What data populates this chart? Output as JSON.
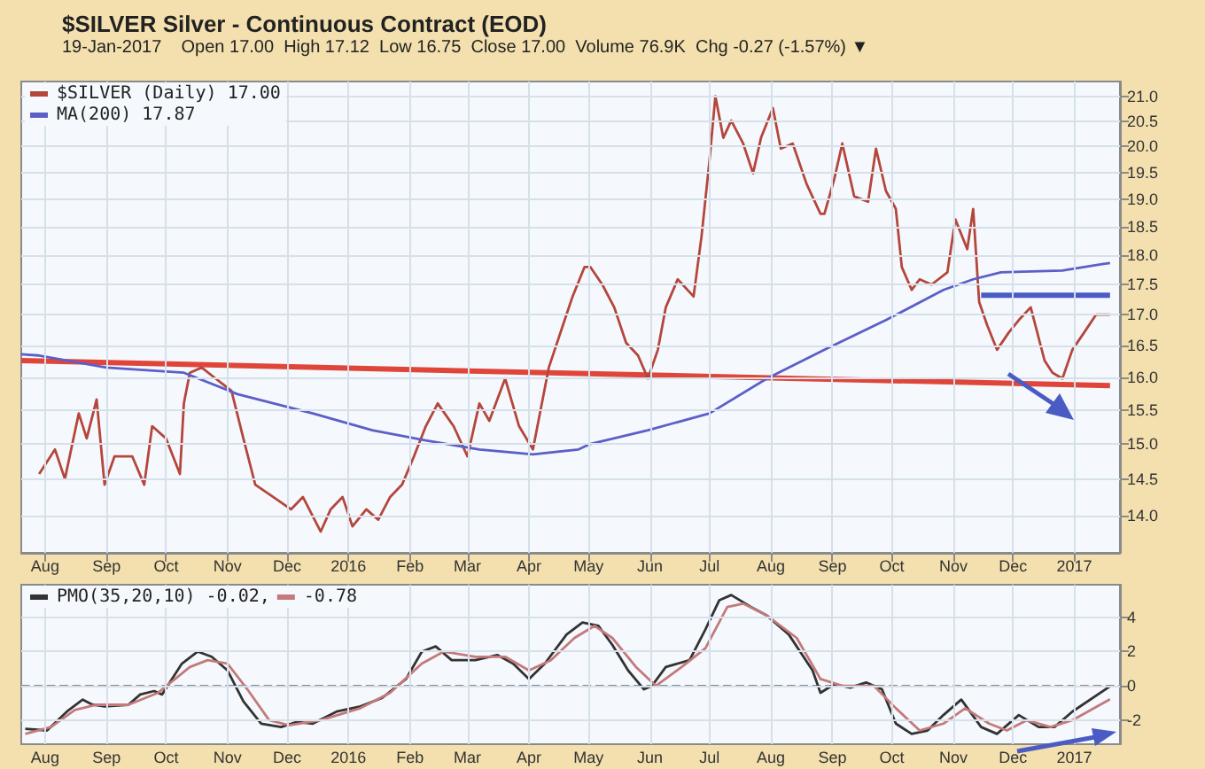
{
  "chart_data": [
    {
      "type": "line",
      "title": "$SILVER Silver - Continuous Contract (EOD)",
      "subtitle": "19-Jan-2017    Open 17.00  High 17.12  Low 16.75  Close 17.00  Volume 76.9K  Chg -0.27 (-1.57%) ▼",
      "xlim": [
        "2015-07-20",
        "2017-01-24"
      ],
      "xticks": [
        {
          "value": "2015-08-01",
          "label": "Aug"
        },
        {
          "value": "2015-09-01",
          "label": "Sep"
        },
        {
          "value": "2015-10-01",
          "label": "Oct"
        },
        {
          "value": "2015-11-01",
          "label": "Nov"
        },
        {
          "value": "2015-12-01",
          "label": "Dec"
        },
        {
          "value": "2016-01-01",
          "label": "2016"
        },
        {
          "value": "2016-02-01",
          "label": "Feb"
        },
        {
          "value": "2016-03-01",
          "label": "Mar"
        },
        {
          "value": "2016-04-01",
          "label": "Apr"
        },
        {
          "value": "2016-05-01",
          "label": "May"
        },
        {
          "value": "2016-06-01",
          "label": "Jun"
        },
        {
          "value": "2016-07-01",
          "label": "Jul"
        },
        {
          "value": "2016-08-01",
          "label": "Aug"
        },
        {
          "value": "2016-09-01",
          "label": "Sep"
        },
        {
          "value": "2016-10-01",
          "label": "Oct"
        },
        {
          "value": "2016-11-01",
          "label": "Nov"
        },
        {
          "value": "2016-12-01",
          "label": "Dec"
        },
        {
          "value": "2017-01-01",
          "label": "2017"
        }
      ],
      "ylim": [
        13.5,
        21.3
      ],
      "log": true,
      "yticks": [
        {
          "value": 14,
          "label": "14.0"
        },
        {
          "value": 14.5,
          "label": "14.5"
        },
        {
          "value": 15,
          "label": "15.0"
        },
        {
          "value": 15.5,
          "label": "15.5"
        },
        {
          "value": 16,
          "label": "16.0"
        },
        {
          "value": 16.5,
          "label": "16.5"
        },
        {
          "value": 17,
          "label": "17.0"
        },
        {
          "value": 17.5,
          "label": "17.5"
        },
        {
          "value": 18,
          "label": "18.0"
        },
        {
          "value": 18.5,
          "label": "18.5"
        },
        {
          "value": 19,
          "label": "19.0"
        },
        {
          "value": 19.5,
          "label": "19.5"
        },
        {
          "value": 20,
          "label": "20.0"
        },
        {
          "value": 20.5,
          "label": "20.5"
        },
        {
          "value": 21,
          "label": "21.0"
        }
      ],
      "grid": true,
      "legend": "top left",
      "marker": "none",
      "series": [
        {
          "name": "$SILVER (Daily) 17.00",
          "color": "#b5463c",
          "x": [
            "2015-07-29",
            "2015-08-06",
            "2015-08-11",
            "2015-08-18",
            "2015-08-22",
            "2015-08-27",
            "2015-08-31",
            "2015-09-05",
            "2015-09-14",
            "2015-09-20",
            "2015-09-24",
            "2015-10-01",
            "2015-10-08",
            "2015-10-10",
            "2015-10-13",
            "2015-10-19",
            "2015-10-26",
            "2015-11-03",
            "2015-11-09",
            "2015-11-15",
            "2015-11-24",
            "2015-12-03",
            "2015-12-09",
            "2015-12-18",
            "2015-12-23",
            "2015-12-29",
            "2016-01-03",
            "2016-01-10",
            "2016-01-16",
            "2016-01-22",
            "2016-01-28",
            "2016-02-03",
            "2016-02-09",
            "2016-02-15",
            "2016-02-23",
            "2016-03-01",
            "2016-03-07",
            "2016-03-12",
            "2016-03-20",
            "2016-03-27",
            "2016-04-03",
            "2016-04-11",
            "2016-04-19",
            "2016-04-23",
            "2016-04-29",
            "2016-05-02",
            "2016-05-08",
            "2016-05-14",
            "2016-05-20",
            "2016-05-26",
            "2016-05-31",
            "2016-06-05",
            "2016-06-09",
            "2016-06-15",
            "2016-06-23",
            "2016-06-27",
            "2016-07-01",
            "2016-07-04",
            "2016-07-08",
            "2016-07-12",
            "2016-07-18",
            "2016-07-23",
            "2016-07-27",
            "2016-08-02",
            "2016-08-06",
            "2016-08-12",
            "2016-08-19",
            "2016-08-26",
            "2016-08-28",
            "2016-09-02",
            "2016-09-06",
            "2016-09-12",
            "2016-09-19",
            "2016-09-23",
            "2016-09-28",
            "2016-10-03",
            "2016-10-06",
            "2016-10-11",
            "2016-10-15",
            "2016-10-21",
            "2016-10-29",
            "2016-11-02",
            "2016-11-08",
            "2016-11-11",
            "2016-11-14",
            "2016-11-18",
            "2016-11-23",
            "2016-11-29",
            "2016-12-04",
            "2016-12-10",
            "2016-12-17",
            "2016-12-21",
            "2016-12-26",
            "2016-12-31",
            "2017-01-06",
            "2017-01-12",
            "2017-01-19"
          ],
          "values": [
            14.57,
            14.92,
            14.5,
            15.45,
            15.08,
            15.66,
            14.42,
            14.82,
            14.82,
            14.42,
            15.26,
            15.08,
            14.57,
            15.6,
            16.07,
            16.15,
            15.98,
            15.79,
            15.08,
            14.42,
            14.25,
            14.08,
            14.25,
            13.78,
            14.08,
            14.25,
            13.85,
            14.08,
            13.94,
            14.25,
            14.42,
            14.82,
            15.26,
            15.6,
            15.26,
            14.82,
            15.6,
            15.34,
            15.98,
            15.26,
            14.92,
            16.15,
            16.91,
            17.3,
            17.8,
            17.8,
            17.5,
            17.12,
            16.54,
            16.34,
            15.98,
            16.43,
            17.12,
            17.59,
            17.3,
            18.33,
            19.72,
            21.0,
            20.17,
            20.51,
            20.06,
            19.49,
            20.17,
            20.76,
            19.96,
            20.06,
            19.29,
            18.74,
            18.74,
            19.39,
            20.06,
            19.06,
            18.96,
            19.96,
            19.16,
            18.83,
            17.8,
            17.41,
            17.59,
            17.5,
            17.71,
            18.64,
            18.11,
            18.83,
            17.21,
            16.83,
            16.43,
            16.71,
            16.91,
            17.12,
            16.26,
            16.07,
            15.98,
            16.43,
            16.71,
            17.0,
            17.0
          ]
        },
        {
          "name": "MA(200) 17.87",
          "color": "#5b5fc7",
          "x": [
            "2015-07-20",
            "2015-07-29",
            "2015-09-01",
            "2015-10-10",
            "2015-11-06",
            "2015-12-14",
            "2016-01-13",
            "2016-02-09",
            "2016-03-07",
            "2016-04-03",
            "2016-04-26",
            "2016-05-02",
            "2016-05-31",
            "2016-07-01",
            "2016-07-30",
            "2016-08-28",
            "2016-09-28",
            "2016-10-27",
            "2016-11-11",
            "2016-11-25",
            "2016-12-26",
            "2017-01-15",
            "2017-01-19"
          ],
          "values": [
            16.36,
            16.34,
            16.15,
            16.07,
            15.74,
            15.45,
            15.2,
            15.05,
            14.92,
            14.85,
            14.92,
            15.0,
            15.2,
            15.45,
            15.98,
            16.43,
            16.91,
            17.41,
            17.59,
            17.71,
            17.74,
            17.85,
            17.87
          ]
        },
        {
          "color": "#e0453a",
          "x": [
            "2015-07-20",
            "2017-01-19"
          ],
          "values": [
            16.26,
            15.87
          ]
        },
        {
          "color": "#4a5cc4",
          "x": [
            "2016-11-15",
            "2017-01-19"
          ],
          "values": [
            17.32,
            17.32
          ]
        }
      ]
    },
    {
      "type": "line",
      "xlim": [
        "2015-07-20",
        "2017-01-24"
      ],
      "xticks": [
        {
          "value": "2015-08-01",
          "label": "Aug"
        },
        {
          "value": "2015-09-01",
          "label": "Sep"
        },
        {
          "value": "2015-10-01",
          "label": "Oct"
        },
        {
          "value": "2015-11-01",
          "label": "Nov"
        },
        {
          "value": "2015-12-01",
          "label": "Dec"
        },
        {
          "value": "2016-01-01",
          "label": "2016"
        },
        {
          "value": "2016-02-01",
          "label": "Feb"
        },
        {
          "value": "2016-03-01",
          "label": "Mar"
        },
        {
          "value": "2016-04-01",
          "label": "Apr"
        },
        {
          "value": "2016-05-01",
          "label": "May"
        },
        {
          "value": "2016-06-01",
          "label": "Jun"
        },
        {
          "value": "2016-07-01",
          "label": "Jul"
        },
        {
          "value": "2016-08-01",
          "label": "Aug"
        },
        {
          "value": "2016-09-01",
          "label": "Sep"
        },
        {
          "value": "2016-10-01",
          "label": "Oct"
        },
        {
          "value": "2016-11-01",
          "label": "Nov"
        },
        {
          "value": "2016-12-01",
          "label": "Dec"
        },
        {
          "value": "2017-01-01",
          "label": "2017"
        }
      ],
      "ylim": [
        -3.4,
        5.9
      ],
      "yticks": [
        -2,
        0,
        2,
        4
      ],
      "grid": true,
      "legend": "top left",
      "marker": "none",
      "ref_lines": [
        {
          "axis": "y",
          "value": 0,
          "color": "#888888",
          "line_style": "dashed"
        }
      ],
      "series": [
        {
          "name": "PMO(35,20,10) -0.02,",
          "color": "#333333",
          "x": [
            "2015-07-22",
            "2015-08-02",
            "2015-08-12",
            "2015-08-20",
            "2015-08-25",
            "2015-08-31",
            "2015-09-12",
            "2015-09-18",
            "2015-09-25",
            "2015-09-29",
            "2015-10-09",
            "2015-10-17",
            "2015-10-24",
            "2015-11-01",
            "2015-11-09",
            "2015-11-18",
            "2015-11-28",
            "2015-12-06",
            "2015-12-14",
            "2015-12-26",
            "2016-01-07",
            "2016-01-18",
            "2016-01-30",
            "2016-02-07",
            "2016-02-14",
            "2016-02-22",
            "2016-03-05",
            "2016-03-16",
            "2016-03-24",
            "2016-04-01",
            "2016-04-09",
            "2016-04-20",
            "2016-04-28",
            "2016-05-06",
            "2016-05-13",
            "2016-05-21",
            "2016-05-29",
            "2016-06-02",
            "2016-06-09",
            "2016-06-21",
            "2016-06-29",
            "2016-07-06",
            "2016-07-12",
            "2016-07-22",
            "2016-07-30",
            "2016-08-10",
            "2016-08-22",
            "2016-08-26",
            "2016-09-02",
            "2016-09-10",
            "2016-09-18",
            "2016-09-26",
            "2016-10-03",
            "2016-10-11",
            "2016-10-19",
            "2016-10-27",
            "2016-11-05",
            "2016-11-15",
            "2016-11-23",
            "2016-12-04",
            "2016-12-14",
            "2016-12-22",
            "2016-12-31",
            "2017-01-19"
          ],
          "values": [
            -2.5,
            -2.6,
            -1.5,
            -0.8,
            -1.1,
            -1.2,
            -1.1,
            -0.5,
            -0.3,
            -0.5,
            1.3,
            2.0,
            1.7,
            0.9,
            -0.9,
            -2.2,
            -2.4,
            -2.1,
            -2.2,
            -1.5,
            -1.2,
            -0.7,
            0.4,
            2.0,
            2.3,
            1.5,
            1.5,
            1.8,
            1.3,
            0.4,
            1.3,
            3.0,
            3.7,
            3.5,
            2.4,
            0.9,
            -0.2,
            0.0,
            1.1,
            1.5,
            3.3,
            5.0,
            5.3,
            4.6,
            4.1,
            3.0,
            0.9,
            -0.4,
            0.1,
            -0.1,
            0.2,
            -0.2,
            -2.2,
            -2.8,
            -2.6,
            -1.7,
            -0.8,
            -2.4,
            -2.8,
            -1.7,
            -2.4,
            -2.4,
            -1.5,
            -0.02
          ]
        },
        {
          "name": "-0.78",
          "color": "#c47a7a",
          "x": [
            "2015-07-22",
            "2015-08-04",
            "2015-08-16",
            "2015-08-27",
            "2015-09-12",
            "2015-09-27",
            "2015-10-13",
            "2015-10-22",
            "2015-11-01",
            "2015-11-11",
            "2015-11-22",
            "2015-12-02",
            "2015-12-18",
            "2016-01-07",
            "2016-01-22",
            "2016-02-07",
            "2016-02-18",
            "2016-03-05",
            "2016-03-20",
            "2016-04-01",
            "2016-04-12",
            "2016-04-24",
            "2016-05-04",
            "2016-05-13",
            "2016-05-25",
            "2016-06-04",
            "2016-06-17",
            "2016-06-29",
            "2016-07-10",
            "2016-07-18",
            "2016-07-30",
            "2016-08-14",
            "2016-08-26",
            "2016-09-06",
            "2016-09-22",
            "2016-10-03",
            "2016-10-15",
            "2016-10-27",
            "2016-11-07",
            "2016-11-19",
            "2016-11-28",
            "2016-12-08",
            "2016-12-20",
            "2016-12-31",
            "2017-01-19"
          ],
          "values": [
            -2.8,
            -2.4,
            -1.4,
            -1.1,
            -1.1,
            -0.4,
            1.1,
            1.5,
            1.3,
            -0.2,
            -2.0,
            -2.3,
            -2.0,
            -1.3,
            -0.4,
            1.3,
            2.0,
            1.7,
            1.7,
            0.9,
            1.5,
            2.8,
            3.5,
            2.8,
            1.1,
            0.0,
            1.1,
            2.2,
            4.6,
            4.8,
            4.1,
            2.8,
            0.4,
            0.0,
            0.0,
            -1.3,
            -2.6,
            -2.2,
            -1.3,
            -2.2,
            -2.6,
            -2.0,
            -2.4,
            -2.0,
            -0.78
          ]
        }
      ]
    }
  ]
}
